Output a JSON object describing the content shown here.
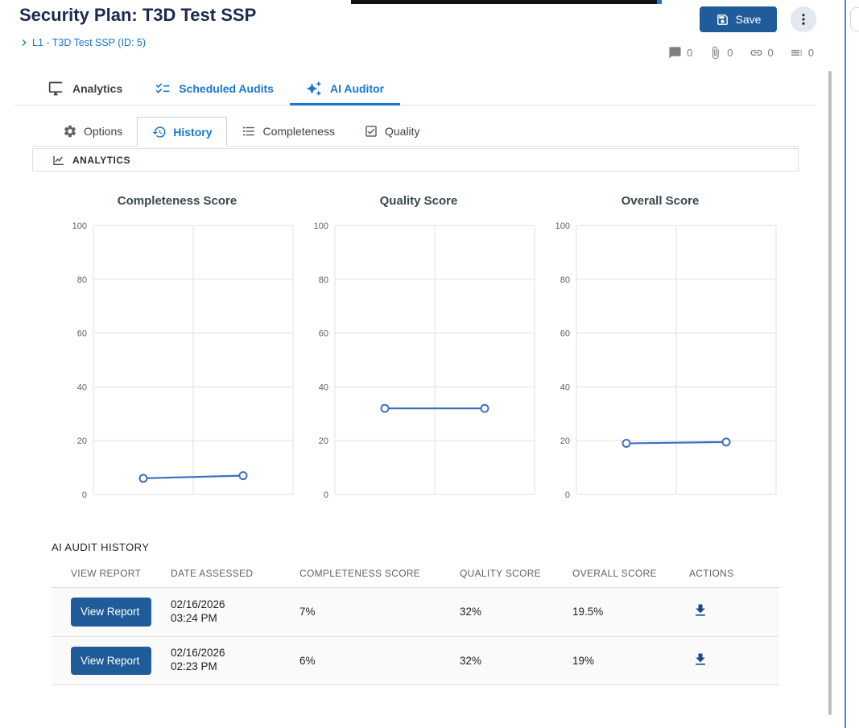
{
  "header": {
    "title": "Security Plan: T3D Test SSP",
    "breadcrumb": "L1 - T3D Test SSP (ID: 5)",
    "save_label": "Save",
    "meta": [
      {
        "icon": "comment-icon",
        "count": "0"
      },
      {
        "icon": "attachment-icon",
        "count": "0"
      },
      {
        "icon": "link-icon",
        "count": "0"
      },
      {
        "icon": "list-icon",
        "count": "0"
      }
    ]
  },
  "primary_tabs": [
    {
      "label": "Analytics",
      "icon": "monitor-icon",
      "active": false
    },
    {
      "label": "Scheduled Audits",
      "icon": "checklist-icon",
      "active": false
    },
    {
      "label": "AI Auditor",
      "icon": "sparkles-icon",
      "active": true
    }
  ],
  "secondary_tabs": [
    {
      "label": "Options",
      "icon": "gear-icon",
      "active": false
    },
    {
      "label": "History",
      "icon": "history-icon",
      "active": true
    },
    {
      "label": "Completeness",
      "icon": "list-icon",
      "active": false
    },
    {
      "label": "Quality",
      "icon": "checkbox-icon",
      "active": false
    }
  ],
  "analytics": {
    "section_label": "ANALYTICS"
  },
  "chart_data": [
    {
      "type": "line",
      "title": "Completeness Score",
      "x": [
        1,
        2
      ],
      "values": [
        6,
        7
      ],
      "ylim": [
        0,
        100
      ],
      "yticks": [
        0,
        20,
        40,
        60,
        80,
        100
      ],
      "xticklabels": [],
      "grid": true,
      "legend": false,
      "line_color": "#3e6fc1"
    },
    {
      "type": "line",
      "title": "Quality Score",
      "x": [
        1,
        2
      ],
      "values": [
        32,
        32
      ],
      "ylim": [
        0,
        100
      ],
      "yticks": [
        0,
        20,
        40,
        60,
        80,
        100
      ],
      "xticklabels": [],
      "grid": true,
      "legend": false,
      "line_color": "#3e6fc1"
    },
    {
      "type": "line",
      "title": "Overall Score",
      "x": [
        1,
        2
      ],
      "values": [
        19,
        19.5
      ],
      "ylim": [
        0,
        100
      ],
      "yticks": [
        0,
        20,
        40,
        60,
        80,
        100
      ],
      "xticklabels": [],
      "grid": true,
      "legend": false,
      "line_color": "#3e6fc1"
    }
  ],
  "history": {
    "section_label": "AI AUDIT HISTORY",
    "columns": [
      "VIEW REPORT",
      "DATE ASSESSED",
      "COMPLETENESS SCORE",
      "QUALITY SCORE",
      "OVERALL SCORE",
      "ACTIONS"
    ],
    "rows": [
      {
        "button": "View Report",
        "date": "02/16/2026",
        "time": "03:24 PM",
        "completeness": "7%",
        "quality": "32%",
        "overall": "19.5%"
      },
      {
        "button": "View Report",
        "date": "02/16/2026",
        "time": "02:23 PM",
        "completeness": "6%",
        "quality": "32%",
        "overall": "19%"
      }
    ]
  },
  "colors": {
    "accent_blue": "#1976d2",
    "button_blue": "#1f5c99",
    "title_navy": "#1b2a4e",
    "chart_line": "#3e6fc1",
    "border_gray": "#e0e0e0",
    "right_edge_accent": "#4285f4"
  }
}
